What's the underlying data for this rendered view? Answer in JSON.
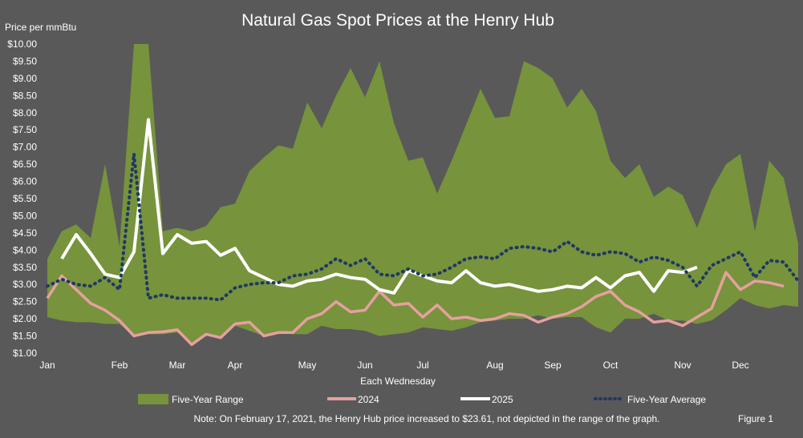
{
  "chart_data": {
    "type": "area",
    "title": "Natural Gas Spot Prices at the Henry Hub",
    "ylabel": "Price per mmBtu",
    "xlabel": "Each Wednesday",
    "ylim": [
      1.0,
      10.0
    ],
    "xlim": [
      0,
      51
    ],
    "y_ticks": [
      "$1.00",
      "$1.50",
      "$2.00",
      "$2.50",
      "$3.00",
      "$3.50",
      "$4.00",
      "$4.50",
      "$5.00",
      "$5.50",
      "$6.00",
      "$6.50",
      "$7.00",
      "$7.50",
      "$8.00",
      "$8.50",
      "$9.00",
      "$9.50",
      "$10.00"
    ],
    "x_ticks": [
      {
        "label": "Jan",
        "week": 0
      },
      {
        "label": "Feb",
        "week": 5
      },
      {
        "label": "Mar",
        "week": 9
      },
      {
        "label": "Apr",
        "week": 13
      },
      {
        "label": "May",
        "week": 18
      },
      {
        "label": "Jun",
        "week": 22
      },
      {
        "label": "Jul",
        "week": 26
      },
      {
        "label": "Aug",
        "week": 31
      },
      {
        "label": "Sep",
        "week": 35
      },
      {
        "label": "Oct",
        "week": 39
      },
      {
        "label": "Nov",
        "week": 44
      },
      {
        "label": "Dec",
        "week": 48
      }
    ],
    "five_year_range": {
      "name": "Five-Year Range",
      "color": "#77933c",
      "high": [
        3.75,
        4.55,
        4.75,
        4.35,
        6.5,
        4.1,
        10.0,
        10.0,
        4.55,
        4.65,
        4.55,
        4.7,
        5.25,
        5.35,
        6.3,
        6.7,
        7.05,
        6.95,
        8.3,
        7.55,
        8.5,
        9.3,
        8.45,
        9.5,
        7.7,
        6.6,
        6.7,
        5.65,
        6.6,
        7.65,
        8.7,
        7.85,
        7.9,
        9.5,
        9.3,
        9.0,
        8.15,
        8.7,
        8.05,
        6.6,
        6.1,
        6.5,
        5.55,
        5.85,
        5.6,
        4.65,
        5.75,
        6.5,
        6.8,
        4.55,
        6.6,
        6.1,
        4.2
      ],
      "low": [
        2.05,
        1.95,
        1.9,
        1.9,
        1.85,
        1.85,
        1.5,
        1.55,
        1.55,
        1.6,
        1.25,
        1.55,
        1.45,
        1.8,
        1.65,
        1.5,
        1.6,
        1.55,
        1.55,
        1.8,
        1.7,
        1.7,
        1.65,
        1.5,
        1.55,
        1.6,
        1.75,
        1.7,
        1.65,
        1.75,
        1.9,
        1.95,
        2.0,
        2.0,
        2.1,
        2.0,
        2.05,
        2.05,
        1.75,
        1.6,
        2.0,
        2.0,
        2.15,
        1.95,
        1.95,
        1.85,
        1.95,
        2.25,
        2.6,
        2.4,
        2.3,
        2.4,
        2.35
      ]
    },
    "series": [
      {
        "name": "2024",
        "color": "#e6a0a0",
        "values": [
          2.6,
          3.25,
          2.85,
          2.45,
          2.25,
          1.95,
          1.5,
          1.6,
          1.62,
          1.68,
          1.25,
          1.55,
          1.45,
          1.85,
          1.9,
          1.5,
          1.6,
          1.6,
          2.0,
          2.15,
          2.5,
          2.2,
          2.25,
          2.8,
          2.4,
          2.45,
          2.05,
          2.4,
          2.0,
          2.05,
          1.95,
          2.0,
          2.15,
          2.1,
          1.9,
          2.05,
          2.15,
          2.35,
          2.65,
          2.8,
          2.4,
          2.2,
          1.9,
          1.95,
          1.8,
          2.05,
          2.3,
          3.35,
          2.85,
          3.1,
          3.05,
          2.95
        ]
      },
      {
        "name": "2025",
        "color": "#ffffff",
        "values": [
          null,
          3.75,
          4.45,
          3.9,
          3.3,
          3.2,
          3.95,
          7.8,
          3.9,
          4.45,
          4.2,
          4.25,
          3.85,
          4.05,
          3.4,
          3.2,
          3.0,
          2.95,
          3.1,
          3.15,
          3.3,
          3.2,
          3.15,
          2.85,
          2.75,
          3.4,
          3.25,
          3.1,
          3.05,
          3.4,
          3.05,
          2.95,
          3.0,
          2.9,
          2.8,
          2.85,
          2.95,
          2.9,
          3.2,
          2.9,
          3.25,
          3.35,
          2.8,
          3.4,
          3.35,
          3.5
        ]
      },
      {
        "name": "Five-Year Average",
        "color": "#1f3864",
        "dotted": true,
        "values": [
          2.95,
          3.15,
          3.0,
          2.95,
          3.2,
          2.85,
          6.8,
          2.6,
          2.7,
          2.6,
          2.6,
          2.6,
          2.55,
          2.9,
          3.0,
          3.05,
          3.05,
          3.25,
          3.3,
          3.45,
          3.75,
          3.55,
          3.75,
          3.3,
          3.25,
          3.45,
          3.25,
          3.3,
          3.5,
          3.75,
          3.8,
          3.75,
          4.05,
          4.1,
          4.05,
          3.95,
          4.25,
          3.95,
          3.85,
          3.95,
          3.9,
          3.65,
          3.8,
          3.7,
          3.5,
          2.95,
          3.55,
          3.75,
          3.95,
          3.2,
          3.7,
          3.65,
          3.1
        ]
      }
    ],
    "legend": "bottom",
    "legend_entries": [
      "Five-Year Range",
      "2024",
      "2025",
      "Five-Year Average"
    ],
    "grid": false,
    "annotations": {
      "note": "Note: On February 17, 2021,  the Henry Hub price increased to $23.61,  not depicted in the range of the graph.",
      "figure": "Figure 1"
    },
    "colors": {
      "background": "#595959",
      "text": "#ffffff"
    }
  }
}
